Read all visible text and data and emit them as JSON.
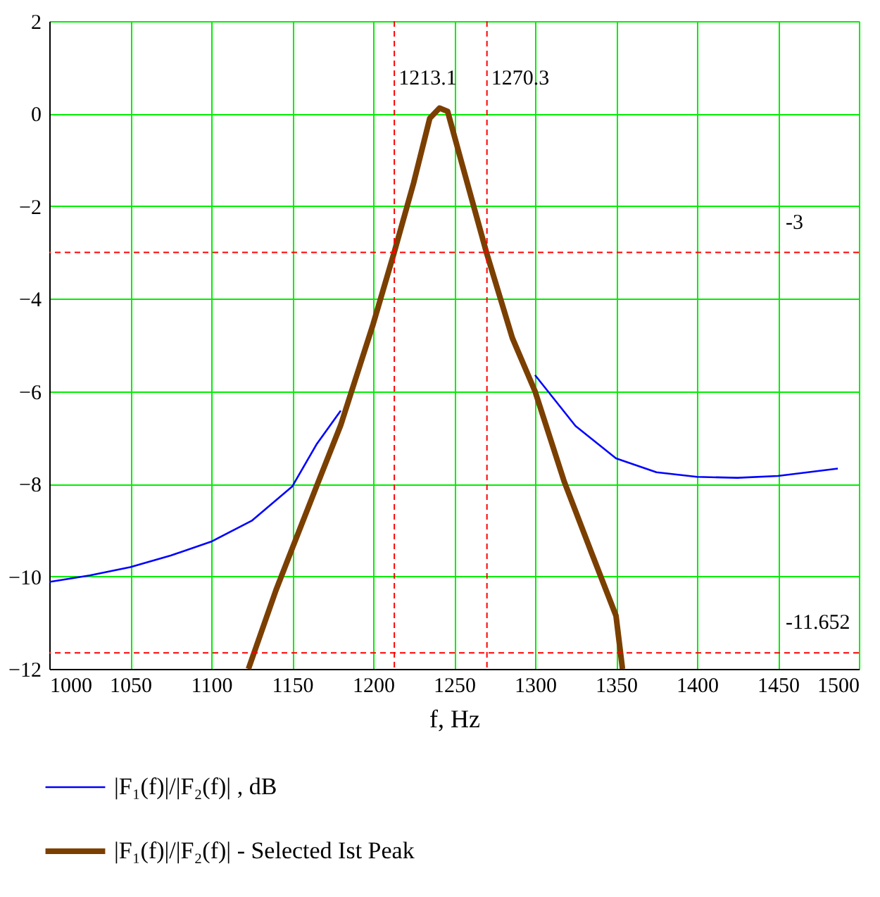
{
  "chart_data": {
    "type": "line",
    "xlabel": "f,    Hz",
    "xlim": [
      1000,
      1500
    ],
    "ylim": [
      -12,
      2
    ],
    "xticks": [
      1000,
      1050,
      1100,
      1150,
      1200,
      1250,
      1300,
      1350,
      1400,
      1450,
      1500
    ],
    "yticks": [
      -12,
      -10,
      -8,
      -6,
      -4,
      -2,
      0,
      2
    ],
    "grid": true,
    "legend": "bottom",
    "line_style": "solid",
    "marker": "none",
    "series": [
      {
        "name": "|F₁(f)|/|F₂(f)| ,   dB",
        "color": "#0000ff",
        "x": [
          1000,
          1025,
          1050,
          1075,
          1100,
          1125,
          1150,
          1165,
          1180,
          1200,
          1213,
          1225,
          1241,
          1255,
          1270,
          1286,
          1300,
          1325,
          1350,
          1375,
          1400,
          1425,
          1450,
          1487
        ],
        "values": [
          -10.12,
          -9.98,
          -9.8,
          -9.55,
          -9.25,
          -8.8,
          -8.06,
          -7.15,
          -6.42,
          null,
          null,
          null,
          null,
          null,
          null,
          null,
          -5.65,
          -6.75,
          -7.45,
          -7.75,
          -7.85,
          -7.87,
          -7.83,
          -7.67
        ]
      },
      {
        "name": "|F₁(f)|/|F₂(f)| - Selected Ist Peak",
        "color": "#7b3f00",
        "x": [
          1123,
          1140,
          1150,
          1165,
          1180,
          1200,
          1213,
          1225,
          1235,
          1241,
          1246,
          1255,
          1270,
          1286,
          1300,
          1318,
          1335,
          1350,
          1354
        ],
        "values": [
          -12,
          -10.3,
          -9.4,
          -8.06,
          -6.73,
          -4.55,
          -3.0,
          -1.5,
          -0.1,
          0.12,
          0.05,
          -1.1,
          -3.0,
          -4.85,
          -6.0,
          -7.95,
          -9.5,
          -10.85,
          -12
        ]
      }
    ],
    "ref_lines": [
      {
        "axis": "x",
        "value": 1213.1,
        "label": "1213.1",
        "color": "#ff0000",
        "line_style": "dashed"
      },
      {
        "axis": "x",
        "value": 1270.3,
        "label": "1270.3",
        "color": "#ff0000",
        "line_style": "dashed"
      },
      {
        "axis": "y",
        "value": -3,
        "label": "-3",
        "color": "#ff0000",
        "line_style": "dashed"
      },
      {
        "axis": "y",
        "value": -11.652,
        "label": "-11.652",
        "color": "#ff0000",
        "line_style": "dashed"
      }
    ]
  }
}
